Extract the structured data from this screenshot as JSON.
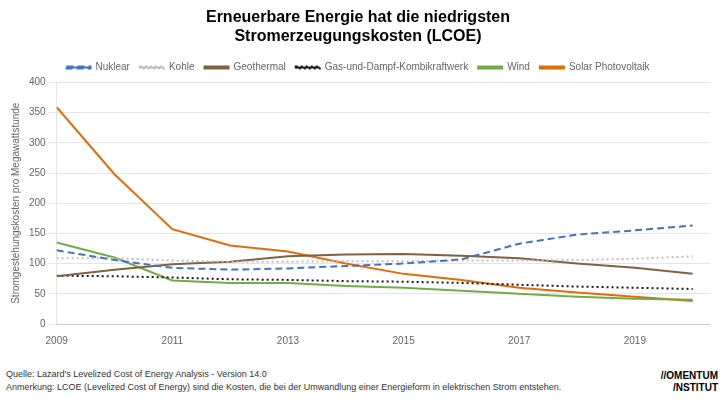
{
  "chart_data": {
    "type": "line",
    "title": "Erneuerbare Energie hat die niedrigsten\nStromerzeugungskosten (LCOE)",
    "ylabel": "Stromgestehungskosten pro Megawattstunde",
    "annotations": [
      "Quelle: Lazard's Levelized Cost of Energy Analysis - Version  14.0",
      "Anmerkung: LCOE (Levelized Cost of Energy) sind die Kosten, die bei der Umwandlung einer Energieform in elektrischen Strom entstehen.",
      "//OMENTUM",
      "/NSTITUT"
    ],
    "x": [
      2009,
      2010,
      2011,
      2012,
      2013,
      2014,
      2015,
      2016,
      2017,
      2018,
      2019,
      2020
    ],
    "series": [
      {
        "name": "Nuklear",
        "color": "#4472C4",
        "line_style": "dashed",
        "values": [
          122,
          106,
          93,
          90,
          92,
          96,
          100,
          107,
          133,
          148,
          155,
          163
        ]
      },
      {
        "name": "Kohle",
        "color": "#BFBFBF",
        "line_style": "dotted",
        "values": [
          109,
          109,
          105,
          103,
          103,
          104,
          104,
          105,
          105,
          106,
          108,
          112
        ]
      },
      {
        "name": "Geothermal",
        "color": "#7B6442",
        "line_style": "solid",
        "values": [
          79,
          90,
          99,
          103,
          112,
          115,
          116,
          113,
          109,
          100,
          93,
          83
        ]
      },
      {
        "name": "Gas-und-Dampf-Kombikraftwerk",
        "color": "#1A1A1A",
        "line_style": "dotted",
        "values": [
          80,
          79,
          77,
          74,
          73,
          71,
          70,
          68,
          65,
          62,
          60,
          58
        ]
      },
      {
        "name": "Wind",
        "color": "#70AD47",
        "line_style": "solid",
        "values": [
          135,
          110,
          72,
          68,
          68,
          63,
          60,
          55,
          50,
          45,
          42,
          40
        ]
      },
      {
        "name": "Solar Photovoltaik",
        "color": "#E36C09",
        "line_style": "solid",
        "values": [
          359,
          248,
          157,
          130,
          120,
          100,
          83,
          73,
          60,
          52,
          45,
          38
        ]
      }
    ],
    "xlim": [
      2009,
      2020.3
    ],
    "xticks": [
      2009,
      2011,
      2013,
      2015,
      2017,
      2019
    ],
    "ylim": [
      0,
      400
    ],
    "yticks": [
      0,
      50,
      100,
      150,
      200,
      250,
      300,
      350,
      400
    ],
    "grid": "y",
    "legend": "top"
  }
}
